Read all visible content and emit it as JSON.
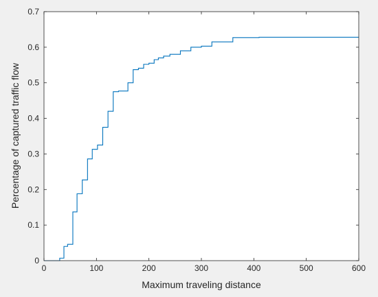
{
  "chart_data": {
    "type": "line",
    "title": "",
    "xlabel": "Maximum traveling distance",
    "ylabel": "Percentage of captured traffic flow",
    "xlim": [
      0,
      600
    ],
    "ylim": [
      0,
      0.7
    ],
    "xticks": [
      0,
      100,
      200,
      300,
      400,
      500,
      600
    ],
    "yticks": [
      0,
      0.1,
      0.2,
      0.3,
      0.4,
      0.5,
      0.6,
      0.7
    ],
    "xtick_labels": [
      "0",
      "100",
      "200",
      "300",
      "400",
      "500",
      "600"
    ],
    "ytick_labels": [
      "0",
      "0.1",
      "0.2",
      "0.3",
      "0.4",
      "0.5",
      "0.6",
      "0.7"
    ],
    "grid": false,
    "legend": false,
    "line_color": "#0072bd",
    "axes_color": "#262626",
    "series": [
      {
        "step": true,
        "points": [
          [
            0,
            0
          ],
          [
            30,
            0
          ],
          [
            30,
            0.007
          ],
          [
            38,
            0.007
          ],
          [
            38,
            0.04
          ],
          [
            45,
            0.04
          ],
          [
            45,
            0.046
          ],
          [
            55,
            0.046
          ],
          [
            55,
            0.137
          ],
          [
            63,
            0.137
          ],
          [
            63,
            0.188
          ],
          [
            73,
            0.188
          ],
          [
            73,
            0.227
          ],
          [
            83,
            0.227
          ],
          [
            83,
            0.286
          ],
          [
            92,
            0.286
          ],
          [
            92,
            0.313
          ],
          [
            102,
            0.313
          ],
          [
            102,
            0.325
          ],
          [
            112,
            0.325
          ],
          [
            112,
            0.375
          ],
          [
            122,
            0.375
          ],
          [
            122,
            0.42
          ],
          [
            132,
            0.42
          ],
          [
            132,
            0.475
          ],
          [
            142,
            0.475
          ],
          [
            142,
            0.477
          ],
          [
            160,
            0.477
          ],
          [
            160,
            0.5
          ],
          [
            170,
            0.5
          ],
          [
            170,
            0.537
          ],
          [
            180,
            0.537
          ],
          [
            180,
            0.541
          ],
          [
            190,
            0.541
          ],
          [
            190,
            0.552
          ],
          [
            200,
            0.552
          ],
          [
            200,
            0.555
          ],
          [
            210,
            0.555
          ],
          [
            210,
            0.565
          ],
          [
            218,
            0.565
          ],
          [
            218,
            0.57
          ],
          [
            228,
            0.57
          ],
          [
            228,
            0.575
          ],
          [
            240,
            0.575
          ],
          [
            240,
            0.58
          ],
          [
            260,
            0.58
          ],
          [
            260,
            0.59
          ],
          [
            280,
            0.59
          ],
          [
            280,
            0.6
          ],
          [
            300,
            0.6
          ],
          [
            300,
            0.603
          ],
          [
            320,
            0.603
          ],
          [
            320,
            0.615
          ],
          [
            360,
            0.615
          ],
          [
            360,
            0.627
          ],
          [
            410,
            0.627
          ],
          [
            410,
            0.628
          ],
          [
            600,
            0.628
          ]
        ]
      }
    ]
  }
}
